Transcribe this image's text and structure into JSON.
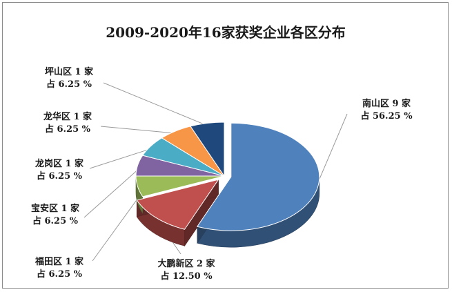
{
  "chart_data": {
    "type": "pie",
    "title": "2009-2020年16家获奖企业各区分布",
    "slices": [
      {
        "name": "南山区",
        "count_label": "9 家",
        "value": 9,
        "percent_label": "占 56.25 %",
        "color": "#4f81bd"
      },
      {
        "name": "大鹏新区",
        "count_label": "2 家",
        "value": 2,
        "percent_label": "占 12.50 %",
        "color": "#c0504d"
      },
      {
        "name": "福田区",
        "count_label": "1 家",
        "value": 1,
        "percent_label": "占 6.25 %",
        "color": "#9bbb59"
      },
      {
        "name": "宝安区",
        "count_label": "1 家",
        "value": 1,
        "percent_label": "占 6.25 %",
        "color": "#8064a2"
      },
      {
        "name": "龙岗区",
        "count_label": "1 家",
        "value": 1,
        "percent_label": "占 6.25 %",
        "color": "#4bacc6"
      },
      {
        "name": "龙华区",
        "count_label": "1 家",
        "value": 1,
        "percent_label": "占 6.25 %",
        "color": "#f79646"
      },
      {
        "name": "坪山区",
        "count_label": "1 家",
        "value": 1,
        "percent_label": "占 6.25 %",
        "color": "#1f497d"
      }
    ]
  }
}
